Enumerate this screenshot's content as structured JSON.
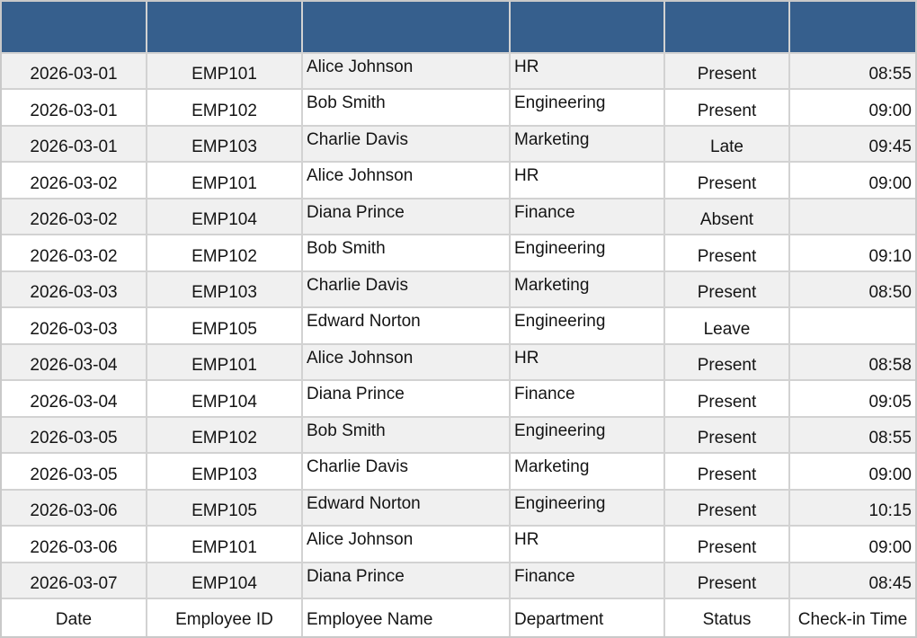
{
  "chart_data": {
    "type": "table",
    "title": "",
    "columns": [
      "Date",
      "Employee ID",
      "Employee Name",
      "Department",
      "Status",
      "Check-in Time"
    ],
    "rows": [
      [
        "2026-03-01",
        "EMP101",
        "Alice Johnson",
        "HR",
        "Present",
        "08:55"
      ],
      [
        "2026-03-01",
        "EMP102",
        "Bob Smith",
        "Engineering",
        "Present",
        "09:00"
      ],
      [
        "2026-03-01",
        "EMP103",
        "Charlie Davis",
        "Marketing",
        "Late",
        "09:45"
      ],
      [
        "2026-03-02",
        "EMP101",
        "Alice Johnson",
        "HR",
        "Present",
        "09:00"
      ],
      [
        "2026-03-02",
        "EMP104",
        "Diana Prince",
        "Finance",
        "Absent",
        ""
      ],
      [
        "2026-03-02",
        "EMP102",
        "Bob Smith",
        "Engineering",
        "Present",
        "09:10"
      ],
      [
        "2026-03-03",
        "EMP103",
        "Charlie Davis",
        "Marketing",
        "Present",
        "08:50"
      ],
      [
        "2026-03-03",
        "EMP105",
        "Edward Norton",
        "Engineering",
        "Leave",
        ""
      ],
      [
        "2026-03-04",
        "EMP101",
        "Alice Johnson",
        "HR",
        "Present",
        "08:58"
      ],
      [
        "2026-03-04",
        "EMP104",
        "Diana Prince",
        "Finance",
        "Present",
        "09:05"
      ],
      [
        "2026-03-05",
        "EMP102",
        "Bob Smith",
        "Engineering",
        "Present",
        "08:55"
      ],
      [
        "2026-03-05",
        "EMP103",
        "Charlie Davis",
        "Marketing",
        "Present",
        "09:00"
      ],
      [
        "2026-03-06",
        "EMP105",
        "Edward Norton",
        "Engineering",
        "Present",
        "10:15"
      ],
      [
        "2026-03-06",
        "EMP101",
        "Alice Johnson",
        "HR",
        "Present",
        "09:00"
      ],
      [
        "2026-03-07",
        "EMP104",
        "Diana Prince",
        "Finance",
        "Present",
        "08:45"
      ]
    ],
    "layout": {
      "column_labels_position": "bottom",
      "top_header_row": "empty",
      "striped_rows": true,
      "grid": true,
      "legend": "none"
    }
  },
  "colors": {
    "header_bg": "#365f8d",
    "row_stripe_bg": "#f0f0f0",
    "row_bg": "#ffffff",
    "gridline": "#d2d2d2",
    "outer_border": "#c9c9c9",
    "text": "#141414"
  }
}
